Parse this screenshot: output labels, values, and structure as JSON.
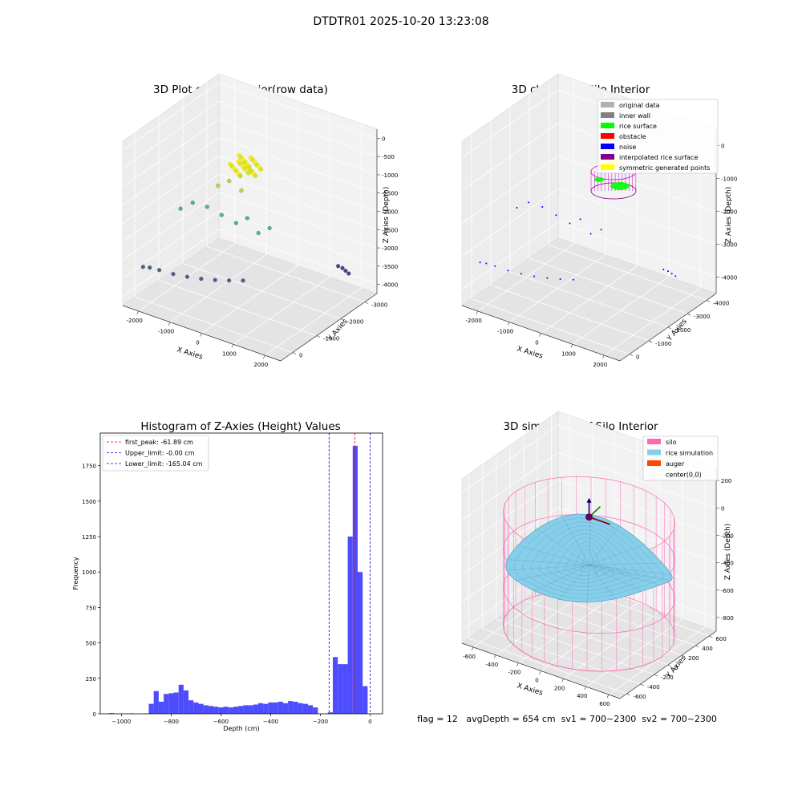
{
  "suptitle": "DTDTR01 2025-10-20 13:23:08",
  "footer": "flag = 12   avgDepth = 654 cm  sv1 = 700~2300  sv2 = 700~2300",
  "chart_data": [
    {
      "type": "scatter",
      "title": "3D Plot of Silo Interior(row data)",
      "xlabel": "X Axies",
      "ylabel": "Y Axies",
      "zlabel": "Z Axies (Depth)",
      "x_ticks": [
        "-2000",
        "-1000",
        "0",
        "1000",
        "2000"
      ],
      "y_ticks": [
        "0",
        "-1000",
        "-2000",
        "-3000"
      ],
      "z_ticks": [
        "0",
        "-500",
        "-1000",
        "-1500",
        "-2000",
        "-2500",
        "-3000",
        "-3500",
        "-4000"
      ],
      "xlim": [
        -2400,
        2400
      ],
      "ylim": [
        -3600,
        600
      ],
      "zlim": [
        -4200,
        0
      ],
      "colormap": "viridis",
      "series": [
        {
          "color": "#3b528b",
          "points": [
            [
              -2200,
              0,
              -3400
            ],
            [
              -2100,
              -150,
              -3450
            ],
            [
              -1950,
              -350,
              -3550
            ],
            [
              -1700,
              -600,
              -3680
            ],
            [
              -1450,
              -850,
              -3780
            ],
            [
              -1200,
              -1100,
              -3860
            ],
            [
              -950,
              -1350,
              -3920
            ],
            [
              -700,
              -1600,
              -3960
            ],
            [
              -450,
              -1850,
              -3990
            ]
          ]
        },
        {
          "color": "#482878",
          "points": [
            [
              1500,
              -3200,
              -3600
            ],
            [
              1700,
              -3100,
              -3550
            ],
            [
              1900,
              -2950,
              -3500
            ],
            [
              2100,
              -2800,
              -3450
            ]
          ]
        },
        {
          "color": "#35b779",
          "points": [
            [
              -1200,
              -200,
              -1700
            ],
            [
              -900,
              -300,
              -1500
            ],
            [
              -600,
              -500,
              -1600
            ],
            [
              -300,
              -700,
              -1800
            ],
            [
              0,
              -900,
              -2000
            ],
            [
              200,
              -1100,
              -1900
            ],
            [
              400,
              -1300,
              -2300
            ],
            [
              600,
              -1500,
              -2200
            ]
          ]
        },
        {
          "color": "#b5de2b",
          "points": [
            [
              -200,
              -400,
              -900
            ],
            [
              0,
              -600,
              -800
            ],
            [
              200,
              -800,
              -700
            ],
            [
              400,
              -1000,
              -600
            ],
            [
              300,
              -700,
              -1000
            ]
          ]
        },
        {
          "color": "#e2e418",
          "points": [
            [
              100,
              -500,
              -300
            ],
            [
              250,
              -650,
              -250
            ],
            [
              350,
              -800,
              -350
            ],
            [
              450,
              -900,
              -200
            ],
            [
              200,
              -750,
              -150
            ]
          ]
        }
      ]
    },
    {
      "type": "scatter",
      "title": "3D classify of Silo Interior",
      "xlabel": "X Axies",
      "ylabel": "Y Axies",
      "zlabel": "Z Axies (Depth)",
      "x_ticks": [
        "-2000",
        "-1000",
        "0",
        "1000",
        "2000"
      ],
      "y_ticks": [
        "0",
        "-1000",
        "-2000",
        "-3000",
        "-4000"
      ],
      "z_ticks": [
        "0",
        "-1000",
        "-2000",
        "-3000",
        "-4000"
      ],
      "xlim": [
        -2400,
        2400
      ],
      "ylim": [
        -4400,
        600
      ],
      "zlim": [
        -4400,
        0
      ],
      "legend": [
        {
          "label": "original data",
          "color": "#b0b0b0"
        },
        {
          "label": "inner wall",
          "color": "#808080"
        },
        {
          "label": "rice surface",
          "color": "#00ff00"
        },
        {
          "label": "obstacle",
          "color": "#ff0000"
        },
        {
          "label": "noise",
          "color": "#0000ff"
        },
        {
          "label": "interpolated rice surface",
          "color": "#800080"
        },
        {
          "label": "symmetric generated points",
          "color": "#ffff00"
        }
      ],
      "legend_loc": "upper right"
    },
    {
      "type": "bar",
      "title": "Histogram of Z-Axies (Height) Values",
      "xlabel": "Depth (cm)",
      "ylabel": "Frequency",
      "xlim": [
        -1085,
        50
      ],
      "ylim": [
        0,
        1980
      ],
      "x_ticks": [
        -1000,
        -800,
        -600,
        -400,
        -200,
        0
      ],
      "y_ticks": [
        0,
        250,
        500,
        750,
        1000,
        1250,
        1500,
        1750
      ],
      "bar_color": "#4d4dff",
      "bin_width": 20,
      "bins": [
        [
          -1040,
          5
        ],
        [
          -960,
          3
        ],
        [
          -900,
          2
        ],
        [
          -880,
          70
        ],
        [
          -860,
          160
        ],
        [
          -840,
          85
        ],
        [
          -820,
          140
        ],
        [
          -800,
          145
        ],
        [
          -780,
          150
        ],
        [
          -760,
          205
        ],
        [
          -740,
          165
        ],
        [
          -720,
          95
        ],
        [
          -700,
          80
        ],
        [
          -680,
          70
        ],
        [
          -660,
          60
        ],
        [
          -640,
          55
        ],
        [
          -620,
          50
        ],
        [
          -600,
          45
        ],
        [
          -580,
          50
        ],
        [
          -560,
          45
        ],
        [
          -540,
          50
        ],
        [
          -520,
          55
        ],
        [
          -500,
          60
        ],
        [
          -480,
          60
        ],
        [
          -460,
          65
        ],
        [
          -440,
          75
        ],
        [
          -420,
          70
        ],
        [
          -400,
          80
        ],
        [
          -380,
          80
        ],
        [
          -360,
          85
        ],
        [
          -340,
          75
        ],
        [
          -320,
          90
        ],
        [
          -300,
          85
        ],
        [
          -280,
          75
        ],
        [
          -260,
          70
        ],
        [
          -240,
          60
        ],
        [
          -220,
          45
        ],
        [
          -160,
          10
        ],
        [
          -140,
          400
        ],
        [
          -120,
          350
        ],
        [
          -100,
          350
        ],
        [
          -80,
          1250
        ],
        [
          -60,
          1890
        ],
        [
          -40,
          1000
        ],
        [
          -20,
          195
        ]
      ],
      "vlines": [
        {
          "label": "first_peak: -61.89 cm",
          "x": -61.89,
          "color": "#ff0000"
        },
        {
          "label": "Upper_limit: -0.00 cm",
          "x": 0,
          "color": "#0000ff"
        },
        {
          "label": "Lower_limit: -165.04 cm",
          "x": -165.04,
          "color": "#0000ff"
        }
      ],
      "legend_loc": "upper left"
    },
    {
      "type": "surface",
      "title": "3D simulation of Silo Interior",
      "xlabel": "X Axies",
      "ylabel": "Y Axies",
      "zlabel": "Z Axies (Depth)",
      "x_ticks": [
        "-600",
        "-400",
        "-200",
        "0",
        "200",
        "400",
        "600"
      ],
      "y_ticks": [
        "-600",
        "-400",
        "-200",
        "0",
        "200",
        "400",
        "600"
      ],
      "z_ticks": [
        "200",
        "0",
        "-200",
        "-400",
        "-600",
        "-800"
      ],
      "xlim": [
        -700,
        700
      ],
      "ylim": [
        -700,
        700
      ],
      "zlim": [
        -950,
        350
      ],
      "silo": {
        "radius": 650,
        "z_top": 0,
        "z_bottom": -900
      },
      "legend": [
        {
          "label": "silo",
          "color": "#ff69b4"
        },
        {
          "label": "rice simulation",
          "color": "#87ceeb"
        },
        {
          "label": "auger",
          "color": "#ff4500"
        },
        {
          "label": "center(0,0)",
          "color": ""
        }
      ],
      "legend_loc": "upper right"
    }
  ]
}
